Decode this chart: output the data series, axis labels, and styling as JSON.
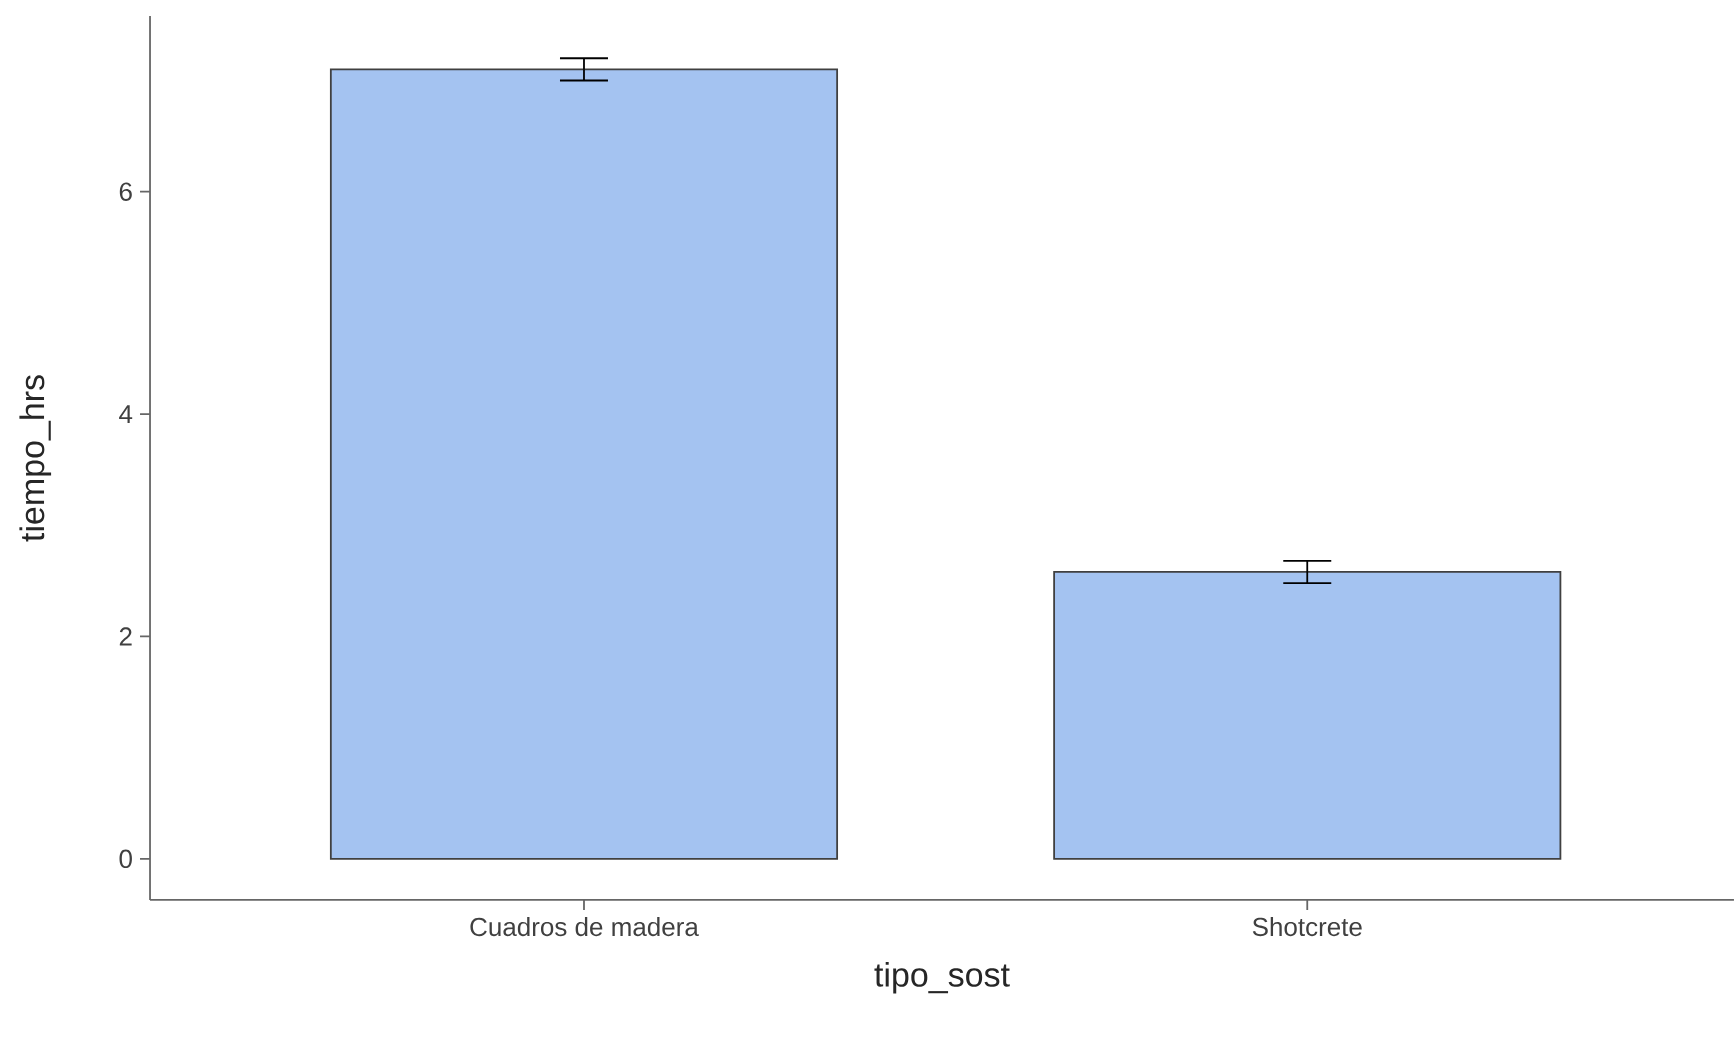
{
  "chart_data": {
    "type": "bar",
    "xlabel": "tipo_sost",
    "ylabel": "tiempo_hrs",
    "categories": [
      "Cuadros de madera",
      "Shotcrete"
    ],
    "values": [
      7.1,
      2.58
    ],
    "errors": [
      0.1,
      0.1
    ],
    "color": "#a4c3f1",
    "ylim": [
      -0.37,
      7.58
    ],
    "yticks": [
      0,
      2,
      4,
      6
    ]
  }
}
